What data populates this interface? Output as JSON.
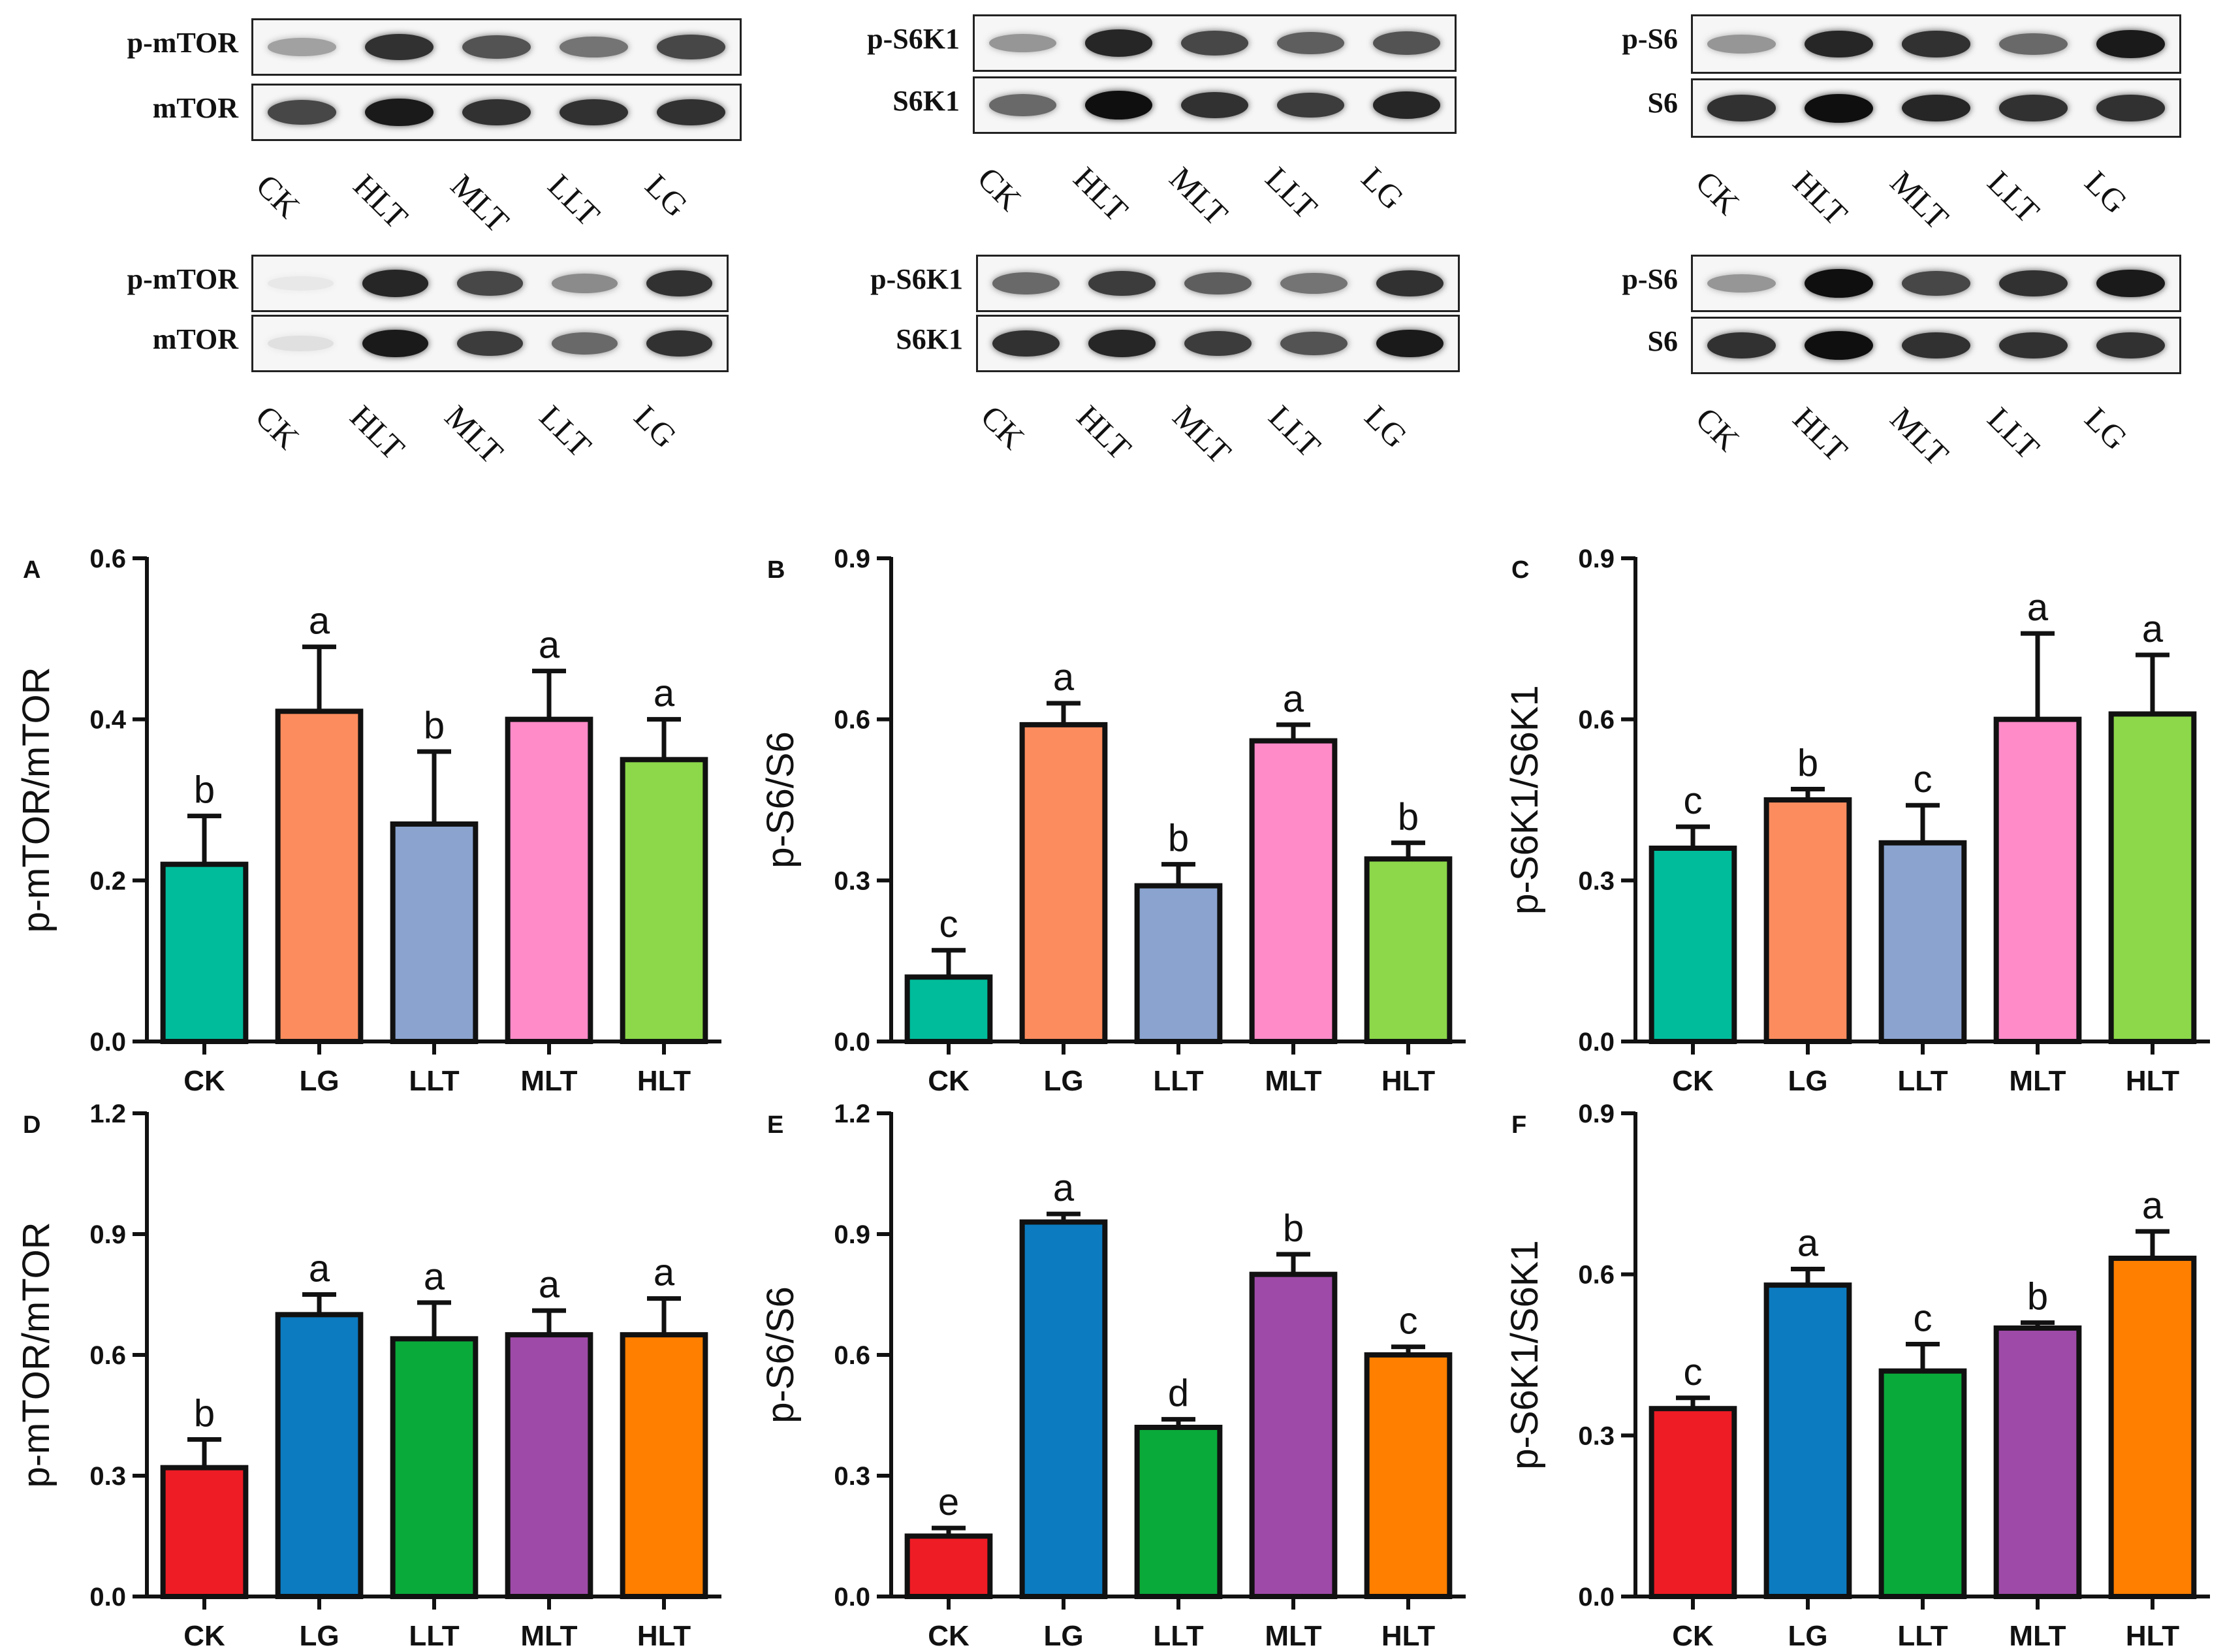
{
  "blots": {
    "groups": [
      "CK",
      "HLT",
      "MLT",
      "LLT",
      "LG"
    ],
    "panels": [
      {
        "labels": [
          "p-mTOR",
          "mTOR"
        ],
        "intensity": [
          [
            0.35,
            0.85,
            0.7,
            0.55,
            0.75
          ],
          [
            0.75,
            0.95,
            0.85,
            0.85,
            0.85
          ]
        ],
        "fade": [
          [
            0,
            0,
            0,
            0,
            0
          ],
          [
            0,
            0,
            0,
            0,
            0
          ]
        ]
      },
      {
        "labels": [
          "p-S6K1",
          "S6K1"
        ],
        "intensity": [
          [
            0.4,
            0.9,
            0.75,
            0.65,
            0.7
          ],
          [
            0.6,
            1.0,
            0.85,
            0.8,
            0.9
          ]
        ],
        "fade": [
          [
            0,
            0,
            0,
            0,
            0
          ],
          [
            0,
            0,
            0,
            0,
            0
          ]
        ]
      },
      {
        "labels": [
          "p-S6",
          "S6"
        ],
        "intensity": [
          [
            0.4,
            0.9,
            0.85,
            0.6,
            0.95
          ],
          [
            0.85,
            1.0,
            0.9,
            0.85,
            0.85
          ]
        ],
        "fade": [
          [
            0,
            0,
            0,
            0,
            0
          ],
          [
            0,
            0,
            0,
            0,
            0
          ]
        ]
      },
      {
        "labels": [
          "p-mTOR",
          "mTOR"
        ],
        "intensity": [
          [
            0.15,
            0.9,
            0.75,
            0.45,
            0.85
          ],
          [
            0.25,
            0.95,
            0.8,
            0.6,
            0.85
          ]
        ],
        "fade": [
          [
            1,
            0,
            0,
            0,
            0
          ],
          [
            1,
            0,
            0,
            0,
            0
          ]
        ]
      },
      {
        "labels": [
          "p-S6K1",
          "S6K1"
        ],
        "intensity": [
          [
            0.6,
            0.8,
            0.65,
            0.55,
            0.85
          ],
          [
            0.85,
            0.9,
            0.8,
            0.7,
            0.95
          ]
        ],
        "fade": [
          [
            0,
            0,
            0,
            0,
            0
          ],
          [
            0,
            0,
            0,
            0,
            0
          ]
        ]
      },
      {
        "labels": [
          "p-S6",
          "S6"
        ],
        "intensity": [
          [
            0.4,
            1.0,
            0.75,
            0.85,
            0.95
          ],
          [
            0.85,
            1.0,
            0.85,
            0.85,
            0.85
          ]
        ],
        "fade": [
          [
            0,
            0,
            0,
            0,
            0
          ],
          [
            0,
            0,
            0,
            0,
            0
          ]
        ]
      }
    ]
  },
  "chart_data": [
    {
      "panel": "A",
      "type": "bar",
      "categories": [
        "CK",
        "LG",
        "LLT",
        "MLT",
        "HLT"
      ],
      "values": [
        0.22,
        0.41,
        0.27,
        0.4,
        0.35
      ],
      "errors": [
        0.06,
        0.08,
        0.09,
        0.06,
        0.05
      ],
      "letters": [
        "b",
        "a",
        "b",
        "a",
        "a"
      ],
      "ylabel": "p-mTOR/mTOR",
      "ylim": [
        0,
        0.6
      ],
      "yticks": [
        "0.0",
        "0.2",
        "0.4",
        "0.6"
      ],
      "colors": [
        "#00bc9b",
        "#fc8c5e",
        "#8aa3cf",
        "#ff8bc9",
        "#8cd84a"
      ]
    },
    {
      "panel": "B",
      "type": "bar",
      "categories": [
        "CK",
        "LG",
        "LLT",
        "MLT",
        "HLT"
      ],
      "values": [
        0.12,
        0.59,
        0.29,
        0.56,
        0.34
      ],
      "errors": [
        0.05,
        0.04,
        0.04,
        0.03,
        0.03
      ],
      "letters": [
        "c",
        "a",
        "b",
        "a",
        "b"
      ],
      "ylabel": "p-S6/S6",
      "ylim": [
        0,
        0.9
      ],
      "yticks": [
        "0.0",
        "0.3",
        "0.6",
        "0.9"
      ],
      "colors": [
        "#00bc9b",
        "#fc8c5e",
        "#8aa3cf",
        "#ff8bc9",
        "#8cd84a"
      ]
    },
    {
      "panel": "C",
      "type": "bar",
      "categories": [
        "CK",
        "LG",
        "LLT",
        "MLT",
        "HLT"
      ],
      "values": [
        0.36,
        0.45,
        0.37,
        0.6,
        0.61
      ],
      "errors": [
        0.04,
        0.02,
        0.07,
        0.16,
        0.11
      ],
      "letters": [
        "c",
        "b",
        "c",
        "a",
        "a"
      ],
      "ylabel": "p-S6K1/S6K1",
      "ylim": [
        0,
        0.9
      ],
      "yticks": [
        "0.0",
        "0.3",
        "0.6",
        "0.9"
      ],
      "colors": [
        "#00bc9b",
        "#fc8c5e",
        "#8aa3cf",
        "#ff8bc9",
        "#8cd84a"
      ]
    },
    {
      "panel": "D",
      "type": "bar",
      "categories": [
        "CK",
        "LG",
        "LLT",
        "MLT",
        "HLT"
      ],
      "values": [
        0.32,
        0.7,
        0.64,
        0.65,
        0.65
      ],
      "errors": [
        0.07,
        0.05,
        0.09,
        0.06,
        0.09
      ],
      "letters": [
        "b",
        "a",
        "a",
        "a",
        "a"
      ],
      "ylabel": "p-mTOR/mTOR",
      "ylim": [
        0,
        1.2
      ],
      "yticks": [
        "0.0",
        "0.3",
        "0.6",
        "0.9",
        "1.2"
      ],
      "colors": [
        "#ee1c25",
        "#0c7bc0",
        "#0aaa3a",
        "#9e4aa8",
        "#ff7f00"
      ]
    },
    {
      "panel": "E",
      "type": "bar",
      "categories": [
        "CK",
        "LG",
        "LLT",
        "MLT",
        "HLT"
      ],
      "values": [
        0.15,
        0.93,
        0.42,
        0.8,
        0.6
      ],
      "errors": [
        0.02,
        0.02,
        0.02,
        0.05,
        0.02
      ],
      "letters": [
        "e",
        "a",
        "d",
        "b",
        "c"
      ],
      "ylabel": "p-S6/S6",
      "ylim": [
        0,
        1.2
      ],
      "yticks": [
        "0.0",
        "0.3",
        "0.6",
        "0.9",
        "1.2"
      ],
      "colors": [
        "#ee1c25",
        "#0c7bc0",
        "#0aaa3a",
        "#9e4aa8",
        "#ff7f00"
      ]
    },
    {
      "panel": "F",
      "type": "bar",
      "categories": [
        "CK",
        "LG",
        "LLT",
        "MLT",
        "HLT"
      ],
      "values": [
        0.35,
        0.58,
        0.42,
        0.5,
        0.63
      ],
      "errors": [
        0.02,
        0.03,
        0.05,
        0.01,
        0.05
      ],
      "letters": [
        "c",
        "a",
        "c",
        "b",
        "a"
      ],
      "ylabel": "p-S6K1/S6K1",
      "ylim": [
        0,
        0.9
      ],
      "yticks": [
        "0.0",
        "0.3",
        "0.6",
        "0.9"
      ],
      "colors": [
        "#ee1c25",
        "#0c7bc0",
        "#0aaa3a",
        "#9e4aa8",
        "#ff7f00"
      ]
    }
  ]
}
